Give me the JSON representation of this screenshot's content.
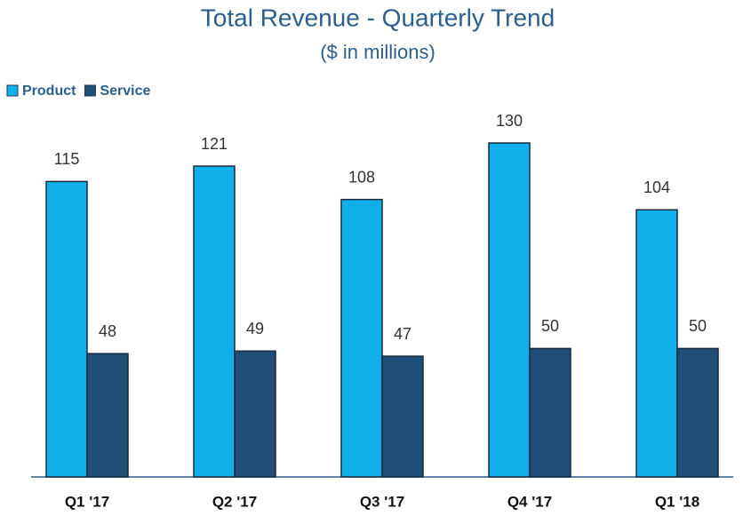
{
  "chart_data": {
    "type": "bar",
    "title": "Total Revenue - Quarterly Trend",
    "subtitle": "($ in millions)",
    "categories": [
      "Q1 '17",
      "Q2 '17",
      "Q3 '17",
      "Q4 '17",
      "Q1 '18"
    ],
    "series": [
      {
        "name": "Product",
        "color": "#10b0ec",
        "values": [
          115,
          121,
          108,
          130,
          104
        ]
      },
      {
        "name": "Service",
        "color": "#1f4e79",
        "values": [
          48,
          49,
          47,
          50,
          50
        ]
      }
    ],
    "legend": "top-left"
  }
}
